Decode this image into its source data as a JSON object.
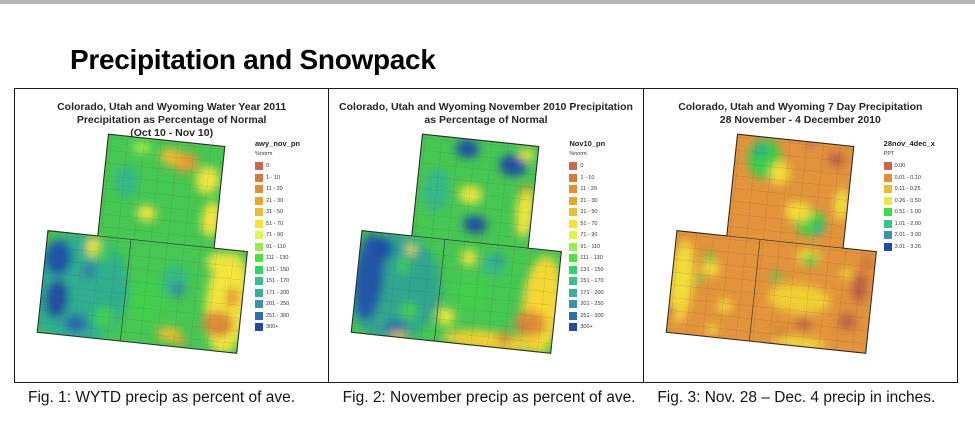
{
  "page": {
    "title": "Precipitation and Snowpack"
  },
  "panels": [
    {
      "title_line1": "Colorado, Utah and Wyoming Water Year 2011",
      "title_line2": "Precipitation as Percentage of Normal",
      "title_line3": "(Oct 10 - Nov 10)",
      "caption": "Fig. 1: WYTD precip as percent of ave.",
      "legend": {
        "title": "awy_nov_pn",
        "subtitle": "%norm",
        "items": [
          {
            "label": "0",
            "color": "#C8684C"
          },
          {
            "label": "1 - 10",
            "color": "#D8793C"
          },
          {
            "label": "11 - 20",
            "color": "#E28E33"
          },
          {
            "label": "21 - 30",
            "color": "#ECA42A"
          },
          {
            "label": "31 - 50",
            "color": "#F0BC2D"
          },
          {
            "label": "51 - 70",
            "color": "#F4E339"
          },
          {
            "label": "71 - 90",
            "color": "#E4F24A"
          },
          {
            "label": "91 - 110",
            "color": "#9FEC48"
          },
          {
            "label": "111 - 130",
            "color": "#4CE244"
          },
          {
            "label": "131 - 150",
            "color": "#2EDA5C"
          },
          {
            "label": "151 - 170",
            "color": "#35C489"
          },
          {
            "label": "171 - 200",
            "color": "#3BAD9E"
          },
          {
            "label": "201 - 250",
            "color": "#3A93AB"
          },
          {
            "label": "251 - 300",
            "color": "#2F6FAC"
          },
          {
            "label": "300+",
            "color": "#1F4BA3"
          }
        ]
      }
    },
    {
      "title_line1": "Colorado, Utah and Wyoming November 2010 Precipitation",
      "title_line2": "as Percentage of Normal",
      "title_line3": "",
      "caption": "Fig. 2: November precip as percent of ave.",
      "legend": {
        "title": "Nov10_pn",
        "subtitle": "%norm",
        "items": [
          {
            "label": "0",
            "color": "#C8684C"
          },
          {
            "label": "1 - 10",
            "color": "#D8793C"
          },
          {
            "label": "11 - 20",
            "color": "#E28E33"
          },
          {
            "label": "21 - 30",
            "color": "#ECA42A"
          },
          {
            "label": "31 - 50",
            "color": "#F0BC2D"
          },
          {
            "label": "51 - 70",
            "color": "#F4E339"
          },
          {
            "label": "71 - 90",
            "color": "#E4F24A"
          },
          {
            "label": "91 - 110",
            "color": "#9FEC48"
          },
          {
            "label": "111 - 130",
            "color": "#4CE244"
          },
          {
            "label": "131 - 150",
            "color": "#2EDA5C"
          },
          {
            "label": "151 - 170",
            "color": "#35C489"
          },
          {
            "label": "171 - 200",
            "color": "#3BAD9E"
          },
          {
            "label": "201 - 250",
            "color": "#3A93AB"
          },
          {
            "label": "251 - 300",
            "color": "#2F6FAC"
          },
          {
            "label": "300+",
            "color": "#1F4BA3"
          }
        ]
      }
    },
    {
      "title_line1": "Colorado, Utah and Wyoming 7 Day Precipitation",
      "title_line2": "28 November - 4 December 2010",
      "title_line3": "",
      "caption": "Fig. 3: Nov. 28 – Dec. 4 precip in inches.",
      "legend": {
        "title": "28nov_4dec_x",
        "subtitle": "PPT",
        "items": [
          {
            "label": "0.00",
            "color": "#C8684C"
          },
          {
            "label": "0.01 - 0.10",
            "color": "#E28E33"
          },
          {
            "label": "0.11 - 0.25",
            "color": "#F0BC2D"
          },
          {
            "label": "0.26 - 0.50",
            "color": "#F4E339"
          },
          {
            "label": "0.51 - 1.00",
            "color": "#3EDD49"
          },
          {
            "label": "1.01 - 2.00",
            "color": "#35C489"
          },
          {
            "label": "2.01 - 3.00",
            "color": "#3A93AB"
          },
          {
            "label": "3.01 - 3.26",
            "color": "#1F4BA3"
          }
        ]
      }
    }
  ]
}
